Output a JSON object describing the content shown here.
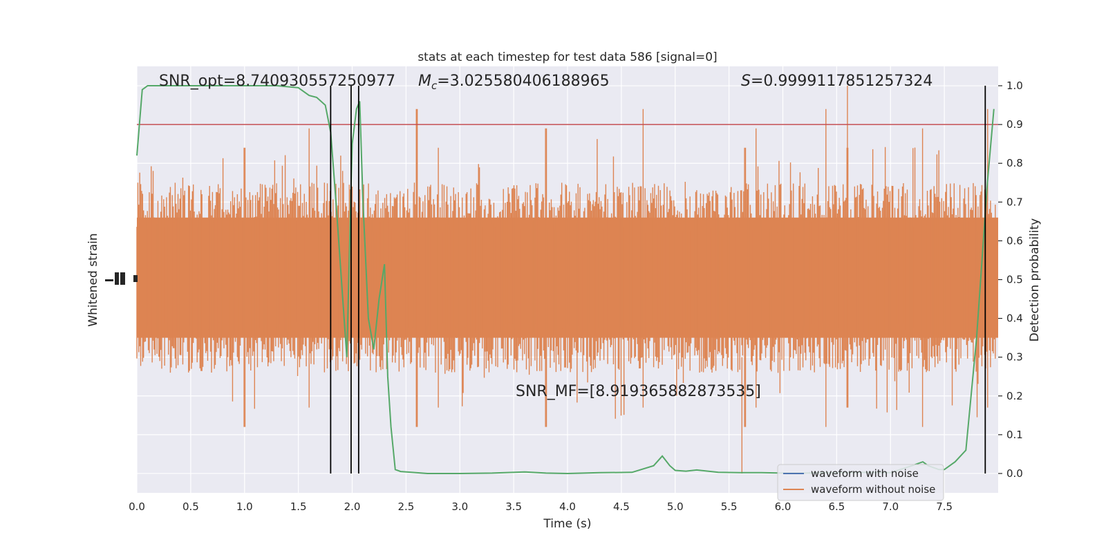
{
  "chart_data": {
    "type": "line",
    "title": "stats at each timestep for test data 586 [signal=0]",
    "xlabel": "Time (s)",
    "ylabel_left": "Whitened strain",
    "ylabel_right": "Detection probability",
    "xlim": [
      0.0,
      8.0
    ],
    "ylim_right": [
      -0.05,
      1.05
    ],
    "x_ticks": [
      0.0,
      0.5,
      1.0,
      1.5,
      2.0,
      2.5,
      3.0,
      3.5,
      4.0,
      4.5,
      5.0,
      5.5,
      6.0,
      6.5,
      7.0,
      7.5
    ],
    "x_tick_labels": [
      "0.0",
      "0.5",
      "1.0",
      "1.5",
      "2.0",
      "2.5",
      "3.0",
      "3.5",
      "4.0",
      "4.5",
      "5.0",
      "5.5",
      "6.0",
      "6.5",
      "7.0",
      "7.5"
    ],
    "y_right_ticks": [
      0.0,
      0.1,
      0.2,
      0.3,
      0.4,
      0.5,
      0.6,
      0.7,
      0.8,
      0.9,
      1.0
    ],
    "y_right_tick_labels": [
      "0.0",
      "0.1",
      "0.2",
      "0.3",
      "0.4",
      "0.5",
      "0.6",
      "0.7",
      "0.8",
      "0.9",
      "1.0"
    ],
    "grid": true,
    "legend_position": "lower-right",
    "threshold": 0.9,
    "vertical_lines": [
      1.8,
      1.99,
      2.06,
      7.88
    ],
    "annotations": {
      "snr_opt": "SNR_opt=8.740930557250977",
      "mc_symbol": "M",
      "mc_sub": "c",
      "mc_value": "=3.025580406188965",
      "s_symbol": "S",
      "s_value": "=0.9999117851257324",
      "snr_mf": "SNR_MF=[8.919365882873535]"
    },
    "series": [
      {
        "name": "waveform with noise",
        "color": "#4c72b0"
      },
      {
        "name": "waveform without noise",
        "color": "#dd8452"
      }
    ],
    "probability": {
      "color": "#55a868",
      "x": [
        0.0,
        0.05,
        0.1,
        0.2,
        0.3,
        0.5,
        0.7,
        0.9,
        1.1,
        1.3,
        1.5,
        1.6,
        1.67,
        1.75,
        1.8,
        1.85,
        1.9,
        1.95,
        2.0,
        2.04,
        2.07,
        2.1,
        2.15,
        2.2,
        2.25,
        2.3,
        2.33,
        2.36,
        2.4,
        2.45,
        2.55,
        2.7,
        3.0,
        3.3,
        3.6,
        3.8,
        4.0,
        4.3,
        4.6,
        4.8,
        4.88,
        4.95,
        5.0,
        5.1,
        5.2,
        5.4,
        5.6,
        5.8,
        6.0,
        6.2,
        6.4,
        6.6,
        6.8,
        7.0,
        7.2,
        7.3,
        7.35,
        7.45,
        7.5,
        7.55,
        7.6,
        7.7,
        7.8,
        7.9,
        7.96
      ],
      "y": [
        0.82,
        0.99,
        1.0,
        1.0,
        1.0,
        1.0,
        1.0,
        1.0,
        1.0,
        1.0,
        0.995,
        0.975,
        0.97,
        0.95,
        0.88,
        0.7,
        0.5,
        0.3,
        0.85,
        0.94,
        0.96,
        0.7,
        0.4,
        0.32,
        0.45,
        0.54,
        0.25,
        0.12,
        0.01,
        0.005,
        0.003,
        0.0,
        0.0,
        0.001,
        0.004,
        0.001,
        0.0,
        0.002,
        0.003,
        0.02,
        0.045,
        0.02,
        0.008,
        0.006,
        0.009,
        0.003,
        0.002,
        0.002,
        0.001,
        0.001,
        0.002,
        0.002,
        0.003,
        0.002,
        0.02,
        0.03,
        0.02,
        0.01,
        0.01,
        0.02,
        0.03,
        0.06,
        0.35,
        0.75,
        0.94
      ]
    },
    "strain_band": {
      "typical_range": [
        0.29,
        0.72
      ],
      "max": 1.0,
      "min": 0.0
    }
  }
}
